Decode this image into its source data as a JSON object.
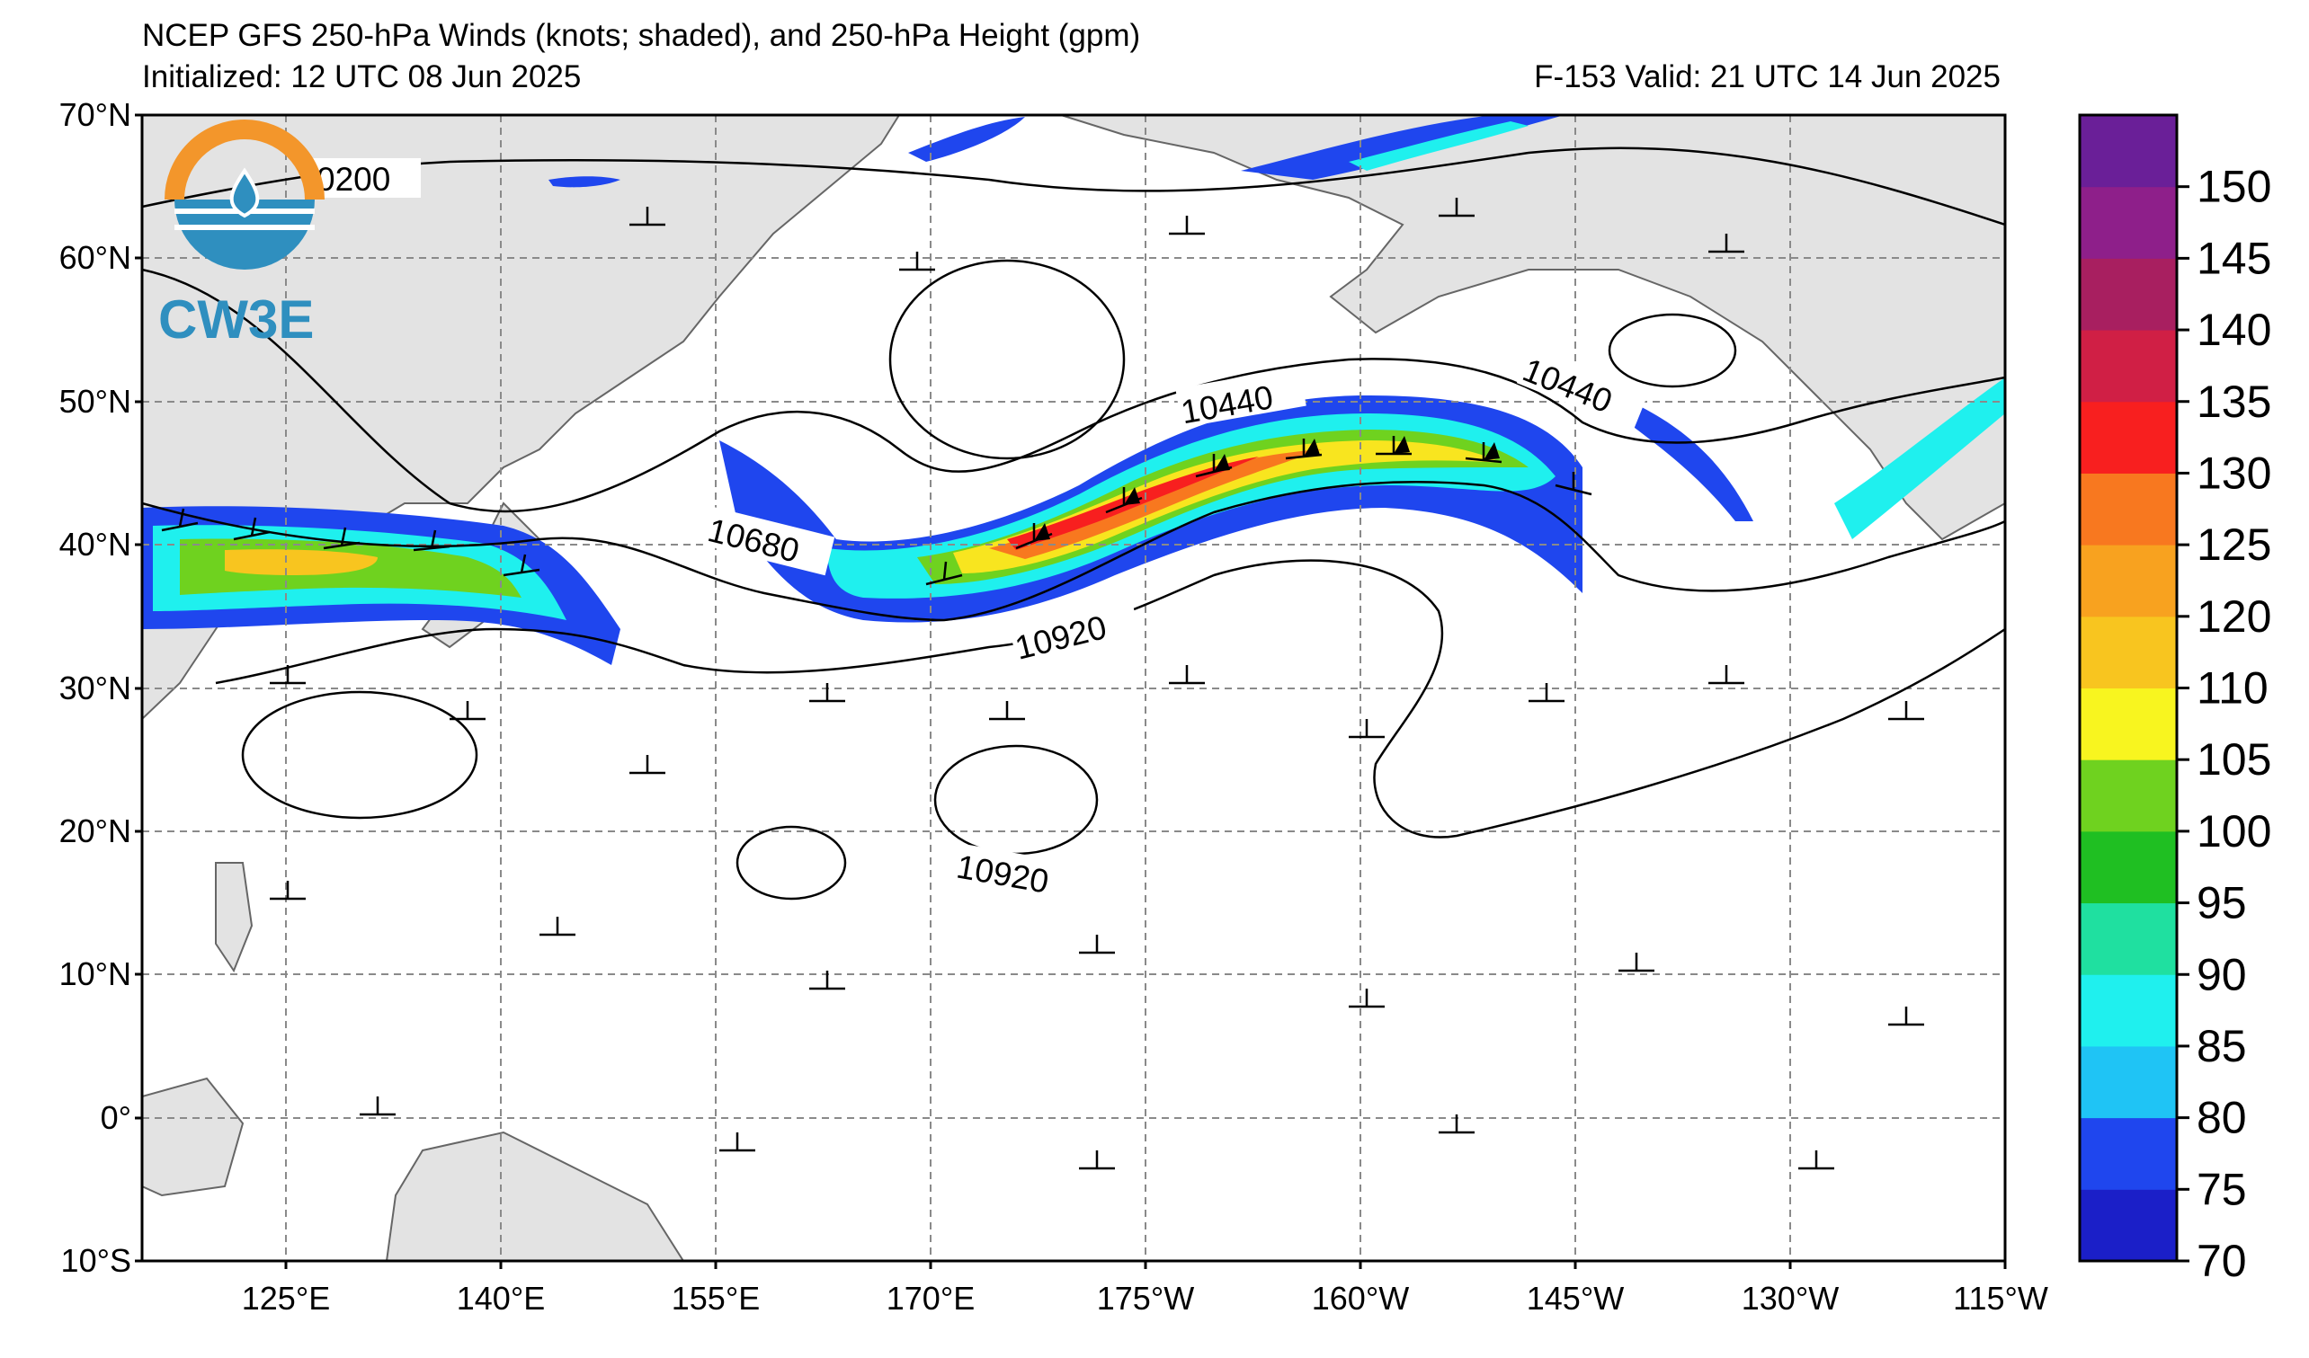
{
  "header": {
    "title": "NCEP GFS 250-hPa Winds (knots; shaded), and 250-hPa Height (gpm)",
    "initialized": "Initialized: 12 UTC 08 Jun 2025",
    "valid": "F-153  Valid: 21 UTC 14 Jun 2025"
  },
  "logo": {
    "text": "CW3E",
    "colors": {
      "orange": "#f3962b",
      "blue": "#2f8fbf"
    }
  },
  "map": {
    "lat_labels": [
      "70°N",
      "60°N",
      "50°N",
      "40°N",
      "30°N",
      "20°N",
      "10°N",
      "0°",
      "10°S"
    ],
    "lon_labels": [
      "125°E",
      "140°E",
      "155°E",
      "170°E",
      "175°W",
      "160°W",
      "145°W",
      "130°W",
      "115°W"
    ],
    "contour_labels": [
      "0200",
      "10440",
      "10440",
      "10680",
      "10920",
      "10920"
    ]
  },
  "colorbar": {
    "ticks": [
      "70",
      "75",
      "80",
      "85",
      "90",
      "95",
      "100",
      "105",
      "110",
      "120",
      "125",
      "130",
      "135",
      "140",
      "145",
      "150"
    ],
    "colors": [
      "#1b1fc8",
      "#1f46ee",
      "#1fc4f5",
      "#1ff0ee",
      "#1fe0a0",
      "#1fbf22",
      "#6fd21f",
      "#f8f51f",
      "#f8c51f",
      "#f8a21f",
      "#f8781f",
      "#f81f1f",
      "#d01f45",
      "#a81f60",
      "#8e1f8a",
      "#6a1f98"
    ]
  }
}
